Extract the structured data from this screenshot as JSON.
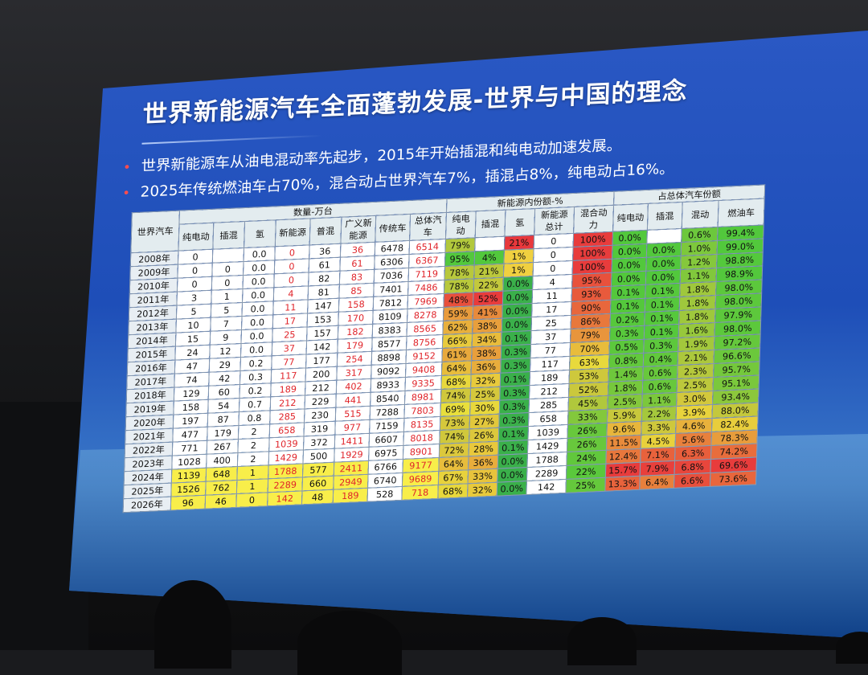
{
  "slide": {
    "title": "世界新能源汽车全面蓬勃发展-世界与中国的理念",
    "bullets": [
      "世界新能源车从油电混动率先起步，2015年开始插混和纯电动加速发展。",
      "2025年传统燃油车占70%，混合动占世界汽车7%，插混占8%，纯电动占16%。"
    ]
  },
  "table": {
    "corner": "世界汽车",
    "group_headers": [
      "数量-万台",
      "新能源内份额-%",
      "占总体汽车份额"
    ],
    "columns": [
      "纯电动",
      "插混",
      "氢",
      "新能源",
      "普混",
      "广义新能源",
      "传统车",
      "总体汽车",
      "纯电动",
      "插混",
      "氢",
      "新能源总计",
      "混合动力",
      "纯电动",
      "插混",
      "混动",
      "燃油车"
    ],
    "rows": [
      {
        "year": "2008年",
        "cells": [
          "0",
          "",
          "0.0",
          "0",
          "36",
          "36",
          "6478",
          "6514",
          "79%",
          "",
          "21%",
          "0",
          "100%",
          "0.0%",
          "",
          "0.6%",
          "99.4%"
        ]
      },
      {
        "year": "2009年",
        "cells": [
          "0",
          "0",
          "0.0",
          "0",
          "61",
          "61",
          "6306",
          "6367",
          "95%",
          "4%",
          "1%",
          "0",
          "100%",
          "0.0%",
          "0.0%",
          "1.0%",
          "99.0%"
        ]
      },
      {
        "year": "2010年",
        "cells": [
          "0",
          "0",
          "0.0",
          "0",
          "82",
          "83",
          "7036",
          "7119",
          "78%",
          "21%",
          "1%",
          "0",
          "100%",
          "0.0%",
          "0.0%",
          "1.2%",
          "98.8%"
        ]
      },
      {
        "year": "2011年",
        "cells": [
          "3",
          "1",
          "0.0",
          "4",
          "81",
          "85",
          "7401",
          "7486",
          "78%",
          "22%",
          "0.0%",
          "4",
          "95%",
          "0.0%",
          "0.0%",
          "1.1%",
          "98.9%"
        ]
      },
      {
        "year": "2012年",
        "cells": [
          "5",
          "5",
          "0.0",
          "11",
          "147",
          "158",
          "7812",
          "7969",
          "48%",
          "52%",
          "0.0%",
          "11",
          "93%",
          "0.1%",
          "0.1%",
          "1.8%",
          "98.0%"
        ]
      },
      {
        "year": "2013年",
        "cells": [
          "10",
          "7",
          "0.0",
          "17",
          "153",
          "170",
          "8109",
          "8278",
          "59%",
          "41%",
          "0.0%",
          "17",
          "90%",
          "0.1%",
          "0.1%",
          "1.8%",
          "98.0%"
        ]
      },
      {
        "year": "2014年",
        "cells": [
          "15",
          "9",
          "0.0",
          "25",
          "157",
          "182",
          "8383",
          "8565",
          "62%",
          "38%",
          "0.0%",
          "25",
          "86%",
          "0.2%",
          "0.1%",
          "1.8%",
          "97.9%"
        ]
      },
      {
        "year": "2015年",
        "cells": [
          "24",
          "12",
          "0.0",
          "37",
          "142",
          "179",
          "8577",
          "8756",
          "66%",
          "34%",
          "0.1%",
          "37",
          "79%",
          "0.3%",
          "0.1%",
          "1.6%",
          "98.0%"
        ]
      },
      {
        "year": "2016年",
        "cells": [
          "47",
          "29",
          "0.2",
          "77",
          "177",
          "254",
          "8898",
          "9152",
          "61%",
          "38%",
          "0.3%",
          "77",
          "70%",
          "0.5%",
          "0.3%",
          "1.9%",
          "97.2%"
        ]
      },
      {
        "year": "2017年",
        "cells": [
          "74",
          "42",
          "0.3",
          "117",
          "200",
          "317",
          "9092",
          "9408",
          "64%",
          "36%",
          "0.3%",
          "117",
          "63%",
          "0.8%",
          "0.4%",
          "2.1%",
          "96.6%"
        ]
      },
      {
        "year": "2018年",
        "cells": [
          "129",
          "60",
          "0.2",
          "189",
          "212",
          "402",
          "8933",
          "9335",
          "68%",
          "32%",
          "0.1%",
          "189",
          "53%",
          "1.4%",
          "0.6%",
          "2.3%",
          "95.7%"
        ]
      },
      {
        "year": "2019年",
        "cells": [
          "158",
          "54",
          "0.7",
          "212",
          "229",
          "441",
          "8540",
          "8981",
          "74%",
          "25%",
          "0.3%",
          "212",
          "52%",
          "1.8%",
          "0.6%",
          "2.5%",
          "95.1%"
        ]
      },
      {
        "year": "2020年",
        "cells": [
          "197",
          "87",
          "0.8",
          "285",
          "230",
          "515",
          "7288",
          "7803",
          "69%",
          "30%",
          "0.3%",
          "285",
          "45%",
          "2.5%",
          "1.1%",
          "3.0%",
          "93.4%"
        ]
      },
      {
        "year": "2021年",
        "cells": [
          "477",
          "179",
          "2",
          "658",
          "319",
          "977",
          "7159",
          "8135",
          "73%",
          "27%",
          "0.3%",
          "658",
          "33%",
          "5.9%",
          "2.2%",
          "3.9%",
          "88.0%"
        ]
      },
      {
        "year": "2022年",
        "cells": [
          "771",
          "267",
          "2",
          "1039",
          "372",
          "1411",
          "6607",
          "8018",
          "74%",
          "26%",
          "0.1%",
          "1039",
          "26%",
          "9.6%",
          "3.3%",
          "4.6%",
          "82.4%"
        ]
      },
      {
        "year": "2023年",
        "cells": [
          "1028",
          "400",
          "2",
          "1429",
          "500",
          "1929",
          "6975",
          "8901",
          "72%",
          "28%",
          "0.1%",
          "1429",
          "26%",
          "11.5%",
          "4.5%",
          "5.6%",
          "78.3%"
        ]
      },
      {
        "year": "2024年",
        "cells": [
          "1139",
          "648",
          "1",
          "1788",
          "577",
          "2411",
          "6766",
          "9177",
          "64%",
          "36%",
          "0.0%",
          "1788",
          "24%",
          "12.4%",
          "7.1%",
          "6.3%",
          "74.2%"
        ]
      },
      {
        "year": "2025年",
        "cells": [
          "1526",
          "762",
          "1",
          "2289",
          "660",
          "2949",
          "6740",
          "9689",
          "67%",
          "33%",
          "0.0%",
          "2289",
          "22%",
          "15.7%",
          "7.9%",
          "6.8%",
          "69.6%"
        ]
      },
      {
        "year": "2026年",
        "cells": [
          "96",
          "46",
          "0",
          "142",
          "48",
          "189",
          "528",
          "718",
          "68%",
          "32%",
          "0.0%",
          "142",
          "25%",
          "13.3%",
          "6.4%",
          "6.6%",
          "73.6%"
        ]
      }
    ]
  }
}
